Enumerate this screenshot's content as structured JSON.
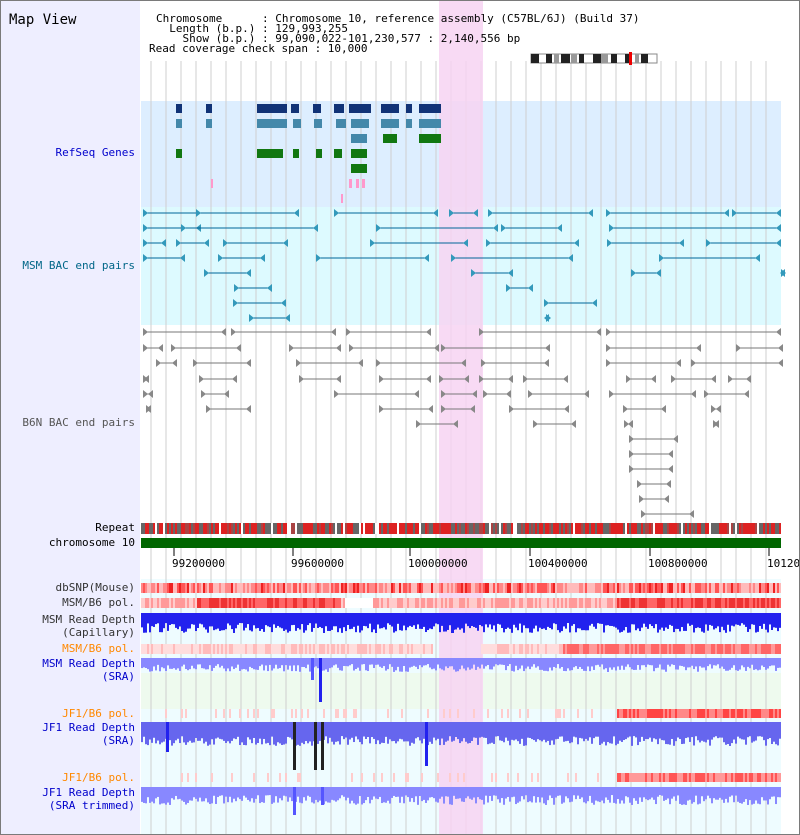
{
  "title": "Map View",
  "header": {
    "lines": [
      "Chromosome      : Chromosome 10, reference assembly (C57BL/6J) (Build 37)",
      "  Length (b.p.) : 129,993,255",
      "    Show (b.p.) : 99,090,022-101,230,577 : 2,140,556 bp",
      "Read coverage check span : 10,000"
    ]
  },
  "tracks": {
    "refseq": "RefSeq Genes",
    "msm_bac": "MSM BAC end pairs",
    "b6n_bac": "B6N BAC end pairs",
    "repeat": "Repeat",
    "chromosome": "chromosome 10",
    "dbsnp": "dbSNP(Mouse)",
    "msm_b6_pol": "MSM/B6 pol.",
    "msm_depth_cap_1": "MSM Read Depth",
    "msm_depth_cap_2": "(Capillary)",
    "msm_b6_pol_sra": "MSM/B6 pol.",
    "msm_depth_sra_1": "MSM Read Depth",
    "msm_depth_sra_2": "(SRA)",
    "jf1_b6_pol": "JF1/B6 pol.",
    "jf1_depth_1": "JF1 Read Depth",
    "jf1_depth_2": "(SRA)",
    "jf1_b6_pol_trim": "JF1/B6 pol.",
    "jf1_trim_1": "JF1 Read Depth",
    "jf1_trim_2": "(SRA trimmed)"
  },
  "axis": {
    "ticks": [
      "99200000",
      "99600000",
      "100000000",
      "100400000",
      "100800000",
      "10120"
    ]
  },
  "colors": {
    "refseq_bg": "#ddeeff",
    "msm_bg": "#ddfaff",
    "highlight": "#f7d4f2",
    "chromosome_bar": "#006600",
    "orange": "#ff8800",
    "msm_blue": "#2222ee",
    "light_blue": "#8888ff",
    "teal": "#006699"
  }
}
